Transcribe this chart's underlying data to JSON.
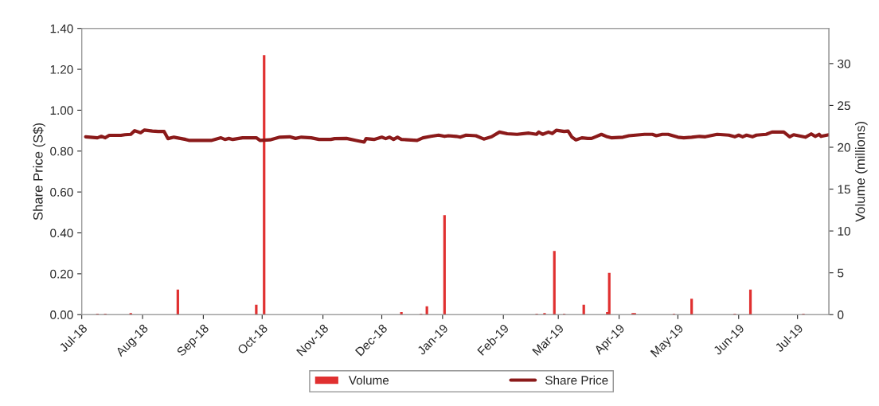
{
  "chart_data": {
    "type": "bar",
    "ylabel": "Share Price (S$)",
    "y2label": "Volume (millions)",
    "xlim": [
      "2018-07-01",
      "2019-07-17"
    ],
    "xticks": [
      {
        "value": "2018-07-01",
        "label": "Jul-18"
      },
      {
        "value": "2018-08-01",
        "label": "Aug-18"
      },
      {
        "value": "2018-09-01",
        "label": "Sep-18"
      },
      {
        "value": "2018-10-01",
        "label": "Oct-18"
      },
      {
        "value": "2018-11-01",
        "label": "Nov-18"
      },
      {
        "value": "2018-12-01",
        "label": "Dec-18"
      },
      {
        "value": "2019-01-01",
        "label": "Jan-19"
      },
      {
        "value": "2019-02-01",
        "label": "Feb-19"
      },
      {
        "value": "2019-03-01",
        "label": "Mar-19"
      },
      {
        "value": "2019-04-01",
        "label": "Apr-19"
      },
      {
        "value": "2019-05-01",
        "label": "May-19"
      },
      {
        "value": "2019-06-01",
        "label": "Jun-19"
      },
      {
        "value": "2019-07-01",
        "label": "Jul-19"
      }
    ],
    "ylim": [
      0,
      1.4
    ],
    "yticks": [
      {
        "value": 0,
        "label": "0.00"
      },
      {
        "value": 0.2,
        "label": "0.20"
      },
      {
        "value": 0.4,
        "label": "0.40"
      },
      {
        "value": 0.6,
        "label": "0.60"
      },
      {
        "value": 0.8,
        "label": "0.80"
      },
      {
        "value": 1.0,
        "label": "1.00"
      },
      {
        "value": 1.2,
        "label": "1.20"
      },
      {
        "value": 1.4,
        "label": "1.40"
      }
    ],
    "y2lim": [
      0,
      34.2
    ],
    "y2ticks": [
      0,
      5,
      10,
      15,
      20,
      25,
      30
    ],
    "legend": "bottom",
    "grid": false,
    "series": [
      {
        "name": "Volume",
        "axis": "y2",
        "color": "#e03030",
        "x": [
          "2018-07-09",
          "2018-07-13",
          "2018-07-26",
          "2018-08-19",
          "2018-09-28",
          "2018-10-02",
          "2018-12-11",
          "2018-12-21",
          "2018-12-24",
          "2019-01-02",
          "2019-02-18",
          "2019-02-22",
          "2019-02-27",
          "2019-03-04",
          "2019-03-14",
          "2019-03-26",
          "2019-03-27",
          "2019-04-08",
          "2019-04-09",
          "2019-04-29",
          "2019-05-08",
          "2019-05-30",
          "2019-06-07",
          "2019-07-04"
        ],
        "values": [
          0.1,
          0.1,
          0.2,
          3.0,
          1.2,
          31.0,
          0.3,
          0.1,
          1.0,
          11.9,
          0.1,
          0.2,
          7.6,
          0.1,
          1.2,
          0.3,
          5.0,
          0.2,
          0.2,
          0.1,
          1.9,
          0.1,
          3.0,
          0.1
        ]
      },
      {
        "name": "Share Price",
        "type": "line",
        "color": "#8b1a1a",
        "x": [
          "2018-07-03",
          "2018-07-09",
          "2018-07-11",
          "2018-07-13",
          "2018-07-15",
          "2018-07-21",
          "2018-07-23",
          "2018-07-26",
          "2018-07-28",
          "2018-07-31",
          "2018-08-02",
          "2018-08-06",
          "2018-08-09",
          "2018-08-12",
          "2018-08-14",
          "2018-08-17",
          "2018-08-23",
          "2018-08-25",
          "2018-09-05",
          "2018-09-10",
          "2018-09-12",
          "2018-09-14",
          "2018-09-16",
          "2018-09-21",
          "2018-09-28",
          "2018-09-30",
          "2018-10-05",
          "2018-10-10",
          "2018-10-15",
          "2018-10-18",
          "2018-10-21",
          "2018-10-26",
          "2018-10-30",
          "2018-11-05",
          "2018-11-07",
          "2018-11-13",
          "2018-11-18",
          "2018-11-22",
          "2018-11-23",
          "2018-11-27",
          "2018-12-01",
          "2018-12-03",
          "2018-12-05",
          "2018-12-07",
          "2018-12-09",
          "2018-12-11",
          "2018-12-19",
          "2018-12-22",
          "2018-12-26",
          "2018-12-30",
          "2019-01-02",
          "2019-01-04",
          "2019-01-08",
          "2019-01-10",
          "2019-01-13",
          "2019-01-18",
          "2019-01-22",
          "2019-01-26",
          "2019-01-30",
          "2019-02-03",
          "2019-02-08",
          "2019-02-14",
          "2019-02-18",
          "2019-02-19",
          "2019-02-21",
          "2019-02-24",
          "2019-02-26",
          "2019-02-28",
          "2019-03-04",
          "2019-03-06",
          "2019-03-08",
          "2019-03-10",
          "2019-03-13",
          "2019-03-16",
          "2019-03-18",
          "2019-03-20",
          "2019-03-23",
          "2019-03-26",
          "2019-03-28",
          "2019-04-03",
          "2019-04-06",
          "2019-04-14",
          "2019-04-18",
          "2019-04-20",
          "2019-04-23",
          "2019-04-26",
          "2019-05-01",
          "2019-05-04",
          "2019-05-08",
          "2019-05-12",
          "2019-05-15",
          "2019-05-21",
          "2019-05-27",
          "2019-05-30",
          "2019-06-01",
          "2019-06-03",
          "2019-06-05",
          "2019-06-08",
          "2019-06-10",
          "2019-06-15",
          "2019-06-18",
          "2019-06-24",
          "2019-06-27",
          "2019-06-29",
          "2019-07-05",
          "2019-07-08",
          "2019-07-10",
          "2019-07-12",
          "2019-07-13",
          "2019-07-17"
        ],
        "values": [
          0.87,
          0.865,
          0.872,
          0.865,
          0.877,
          0.877,
          0.88,
          0.882,
          0.9,
          0.89,
          0.903,
          0.898,
          0.896,
          0.896,
          0.861,
          0.868,
          0.857,
          0.852,
          0.852,
          0.865,
          0.857,
          0.862,
          0.857,
          0.865,
          0.865,
          0.852,
          0.855,
          0.868,
          0.87,
          0.862,
          0.868,
          0.865,
          0.857,
          0.857,
          0.861,
          0.862,
          0.852,
          0.844,
          0.861,
          0.857,
          0.868,
          0.861,
          0.868,
          0.857,
          0.868,
          0.857,
          0.852,
          0.865,
          0.872,
          0.878,
          0.872,
          0.875,
          0.872,
          0.868,
          0.878,
          0.875,
          0.859,
          0.87,
          0.893,
          0.885,
          0.882,
          0.888,
          0.882,
          0.893,
          0.882,
          0.893,
          0.886,
          0.902,
          0.896,
          0.898,
          0.868,
          0.855,
          0.865,
          0.862,
          0.862,
          0.87,
          0.882,
          0.87,
          0.865,
          0.868,
          0.875,
          0.882,
          0.882,
          0.875,
          0.882,
          0.882,
          0.868,
          0.865,
          0.868,
          0.872,
          0.87,
          0.882,
          0.878,
          0.87,
          0.878,
          0.87,
          0.878,
          0.87,
          0.878,
          0.882,
          0.893,
          0.893,
          0.87,
          0.88,
          0.868,
          0.884,
          0.872,
          0.882,
          0.872,
          0.88
        ]
      }
    ]
  }
}
